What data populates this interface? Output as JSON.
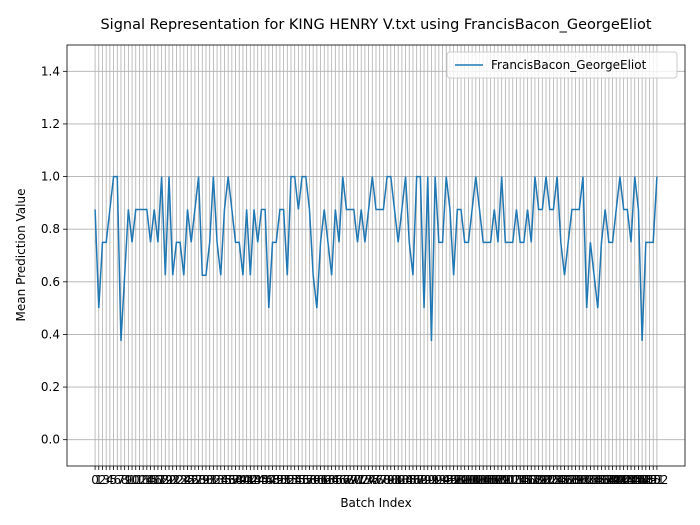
{
  "chart_data": {
    "type": "line",
    "title": "Signal Representation for KING HENRY V.txt using FrancisBacon_GeorgeEliot",
    "xlabel": "Batch Index",
    "ylabel": "Mean Prediction Value",
    "x": [
      0,
      1,
      2,
      3,
      4,
      5,
      6,
      7,
      8,
      9,
      10,
      11,
      12,
      13,
      14,
      15,
      16,
      17,
      18,
      19,
      20,
      21,
      22,
      23,
      24,
      25,
      26,
      27,
      28,
      29,
      30,
      31,
      32,
      33,
      34,
      35,
      36,
      37,
      38,
      39,
      40,
      41,
      42,
      43,
      44,
      45,
      46,
      47,
      48,
      49,
      50,
      51,
      52,
      53,
      54,
      55,
      56,
      57,
      58,
      59,
      60,
      61,
      62,
      63,
      64,
      65,
      66,
      67,
      68,
      69,
      70,
      71,
      72,
      73,
      74,
      75,
      76,
      77,
      78,
      79,
      80,
      81,
      82,
      83,
      84,
      85,
      86,
      87,
      88,
      89,
      90,
      91,
      92,
      93,
      94,
      95,
      96,
      97,
      98,
      99,
      100,
      101,
      102,
      103,
      104,
      105,
      106,
      107,
      108,
      109,
      110,
      111,
      112,
      113,
      114,
      115,
      116,
      117,
      118,
      119,
      120,
      121,
      122,
      123,
      124,
      125,
      126,
      127,
      128,
      129,
      130,
      131,
      132,
      133,
      134,
      135,
      136,
      137,
      138,
      139,
      140,
      141,
      142,
      143,
      144,
      145,
      146,
      147,
      148,
      149,
      150,
      151,
      152
    ],
    "series": [
      {
        "name": "FrancisBacon_GeorgeEliot",
        "color": "#1f77b4",
        "values": [
          0.875,
          0.5,
          0.75,
          0.75,
          0.875,
          1,
          1,
          0.375,
          0.625,
          0.875,
          0.75,
          0.875,
          0.875,
          0.875,
          0.875,
          0.75,
          0.875,
          0.75,
          1,
          0.625,
          1,
          0.625,
          0.75,
          0.75,
          0.625,
          0.875,
          0.75,
          0.875,
          1,
          0.625,
          0.625,
          0.75,
          1,
          0.75,
          0.625,
          0.875,
          1,
          0.875,
          0.75,
          0.75,
          0.625,
          0.875,
          0.625,
          0.875,
          0.75,
          0.875,
          0.875,
          0.5,
          0.75,
          0.75,
          0.875,
          0.875,
          0.625,
          1,
          1,
          0.875,
          1,
          1,
          0.875,
          0.625,
          0.5,
          0.75,
          0.875,
          0.75,
          0.625,
          0.875,
          0.75,
          1,
          0.875,
          0.875,
          0.875,
          0.75,
          0.875,
          0.75,
          0.875,
          1,
          0.875,
          0.875,
          0.875,
          1,
          1,
          0.875,
          0.75,
          0.875,
          1,
          0.75,
          0.625,
          1,
          1,
          0.5,
          1,
          0.375,
          1,
          0.75,
          0.75,
          1,
          0.875,
          0.625,
          0.875,
          0.875,
          0.75,
          0.75,
          0.875,
          1,
          0.875,
          0.75,
          0.75,
          0.75,
          0.875,
          0.75,
          1,
          0.75,
          0.75,
          0.75,
          0.875,
          0.75,
          0.75,
          0.875,
          0.75,
          1,
          0.875,
          0.875,
          1,
          0.875,
          0.875,
          1,
          0.75,
          0.625,
          0.75,
          0.875,
          0.875,
          0.875,
          1,
          0.5,
          0.75,
          0.625,
          0.5,
          0.75,
          0.875,
          0.75,
          0.75,
          0.875,
          1,
          0.875,
          0.875,
          0.75,
          1,
          0.875,
          0.375,
          0.75,
          0.75,
          0.75,
          1
        ]
      }
    ],
    "xlim": [
      -7.6,
      159.6
    ],
    "xticks": [
      0,
      1,
      2,
      3,
      4,
      5,
      6,
      7,
      8,
      9,
      10,
      11,
      12,
      13,
      14,
      15,
      16,
      17,
      18,
      19,
      20,
      21,
      22,
      23,
      24,
      25,
      26,
      27,
      28,
      29,
      30,
      31,
      32,
      33,
      34,
      35,
      36,
      37,
      38,
      39,
      40,
      41,
      42,
      43,
      44,
      45,
      46,
      47,
      48,
      49,
      50,
      51,
      52,
      53,
      54,
      55,
      56,
      57,
      58,
      59,
      60,
      61,
      62,
      63,
      64,
      65,
      66,
      67,
      68,
      69,
      70,
      71,
      72,
      73,
      74,
      75,
      76,
      77,
      78,
      79,
      80,
      81,
      82,
      83,
      84,
      85,
      86,
      87,
      88,
      89,
      90,
      91,
      92,
      93,
      94,
      95,
      96,
      97,
      98,
      99,
      100,
      101,
      102,
      103,
      104,
      105,
      106,
      107,
      108,
      109,
      110,
      111,
      112,
      113,
      114,
      115,
      116,
      117,
      118,
      119,
      120,
      121,
      122,
      123,
      124,
      125,
      126,
      127,
      128,
      129,
      130,
      131,
      132,
      133,
      134,
      135,
      136,
      137,
      138,
      139,
      140,
      141,
      142,
      143,
      144,
      145,
      146,
      147,
      148,
      149,
      150,
      151,
      152
    ],
    "ylim": [
      -0.1,
      1.5
    ],
    "yticks": [
      {
        "value": 0,
        "label": "0.0"
      },
      {
        "value": 0.2,
        "label": "0.2"
      },
      {
        "value": 0.4,
        "label": "0.4"
      },
      {
        "value": 0.6,
        "label": "0.6"
      },
      {
        "value": 0.8,
        "label": "0.8"
      },
      {
        "value": 1,
        "label": "1.0"
      },
      {
        "value": 1.2,
        "label": "1.2"
      },
      {
        "value": 1.4,
        "label": "1.4"
      }
    ],
    "grid": true,
    "legend": "upper right"
  }
}
